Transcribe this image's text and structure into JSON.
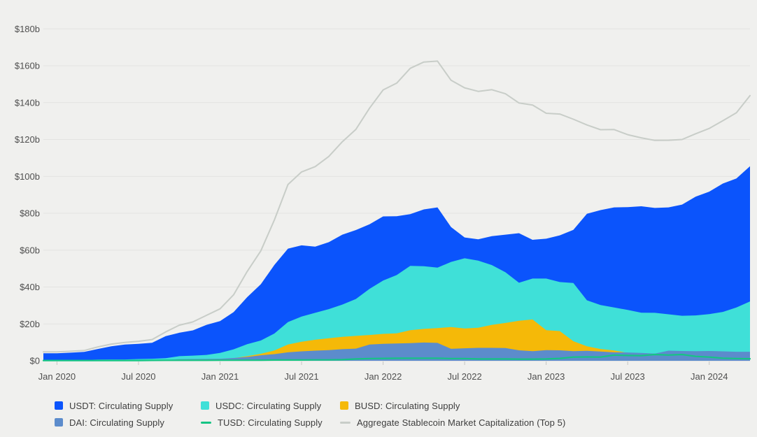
{
  "colors": {
    "background": "#f0f0ee",
    "gridline": "#e3e3e1",
    "zero_line": "#d8d8d6",
    "tick_mark": "#c6c6c4",
    "axis_text": "#4f4f4f",
    "legend_text": "#3d3d3d"
  },
  "chart_data": {
    "type": "area",
    "mode": "overlapping-areas-from-zero-plus-lines",
    "grid": "horizontal-only",
    "legend_position": "bottom-left",
    "ylim": [
      0,
      190
    ],
    "y_ticks": [
      {
        "value": 0,
        "label": "$0"
      },
      {
        "value": 20,
        "label": "$20b"
      },
      {
        "value": 40,
        "label": "$40b"
      },
      {
        "value": 60,
        "label": "$60b"
      },
      {
        "value": 80,
        "label": "$80b"
      },
      {
        "value": 100,
        "label": "$100b"
      },
      {
        "value": 120,
        "label": "$120b"
      },
      {
        "value": 140,
        "label": "$140b"
      },
      {
        "value": 160,
        "label": "$160b"
      },
      {
        "value": 180,
        "label": "$180b"
      }
    ],
    "x_ticks": [
      {
        "month": "2020-01",
        "label": "Jan 2020"
      },
      {
        "month": "2020-07",
        "label": "Jul 2020"
      },
      {
        "month": "2021-01",
        "label": "Jan 2021"
      },
      {
        "month": "2021-07",
        "label": "Jul 2021"
      },
      {
        "month": "2022-01",
        "label": "Jan 2022"
      },
      {
        "month": "2022-07",
        "label": "Jul 2022"
      },
      {
        "month": "2023-01",
        "label": "Jan 2023"
      },
      {
        "month": "2023-07",
        "label": "Jul 2023"
      },
      {
        "month": "2024-01",
        "label": "Jan 2024"
      }
    ],
    "dates": [
      "2019-12",
      "2020-01",
      "2020-02",
      "2020-03",
      "2020-04",
      "2020-05",
      "2020-06",
      "2020-07",
      "2020-08",
      "2020-09",
      "2020-10",
      "2020-11",
      "2020-12",
      "2021-01",
      "2021-02",
      "2021-03",
      "2021-04",
      "2021-05",
      "2021-06",
      "2021-07",
      "2021-08",
      "2021-09",
      "2021-10",
      "2021-11",
      "2021-12",
      "2022-01",
      "2022-02",
      "2022-03",
      "2022-04",
      "2022-05",
      "2022-06",
      "2022-07",
      "2022-08",
      "2022-09",
      "2022-10",
      "2022-11",
      "2022-12",
      "2023-01",
      "2023-02",
      "2023-03",
      "2023-04",
      "2023-05",
      "2023-06",
      "2023-07",
      "2023-08",
      "2023-09",
      "2023-10",
      "2023-11",
      "2023-12",
      "2024-01",
      "2024-02",
      "2024-03",
      "2024-04"
    ],
    "unit": "USD billions",
    "series": [
      {
        "id": "usdt",
        "name": "USDT: Circulating Supply",
        "kind": "area",
        "color": "#0b54fc",
        "values": [
          4.1,
          4.1,
          4.4,
          4.8,
          6.4,
          7.9,
          8.8,
          9.2,
          9.8,
          13.4,
          15.2,
          16.5,
          19.5,
          21.5,
          26.4,
          34.5,
          41.5,
          52.0,
          60.8,
          62.6,
          61.9,
          64.3,
          68.4,
          70.9,
          74.0,
          78.3,
          78.4,
          79.5,
          82.1,
          83.2,
          72.5,
          66.9,
          65.9,
          67.6,
          68.4,
          69.2,
          65.6,
          66.2,
          68.0,
          71.0,
          79.7,
          81.7,
          83.2,
          83.3,
          83.8,
          82.9,
          83.2,
          84.7,
          89.0,
          91.7,
          96.1,
          98.9,
          105.5
        ]
      },
      {
        "id": "usdc",
        "name": "USDC: Circulating Supply",
        "kind": "area",
        "color": "#3fe0d8",
        "values": [
          0.5,
          0.52,
          0.46,
          0.44,
          0.7,
          0.73,
          0.73,
          0.93,
          1.1,
          1.4,
          2.5,
          2.8,
          3.2,
          4.3,
          6.2,
          9.0,
          11.0,
          14.8,
          21.0,
          24.0,
          26.0,
          28.0,
          30.5,
          33.5,
          39.0,
          43.5,
          46.5,
          51.5,
          51.3,
          50.5,
          53.6,
          55.6,
          54.3,
          51.9,
          48.0,
          42.3,
          44.6,
          44.6,
          42.7,
          42.2,
          32.8,
          30.2,
          28.9,
          27.6,
          26.1,
          26.0,
          25.2,
          24.4,
          24.6,
          25.3,
          26.5,
          28.9,
          32.2
        ]
      },
      {
        "id": "busd",
        "name": "BUSD: Circulating Supply",
        "kind": "area",
        "color": "#f5b908",
        "values": [
          0.02,
          0.02,
          0.03,
          0.07,
          0.17,
          0.19,
          0.18,
          0.18,
          0.19,
          0.23,
          0.43,
          0.57,
          0.68,
          0.95,
          1.4,
          2.5,
          3.8,
          5.6,
          8.8,
          10.3,
          11.4,
          12.2,
          13.0,
          13.5,
          14.0,
          14.6,
          14.9,
          16.6,
          17.3,
          17.7,
          18.3,
          17.5,
          17.9,
          19.5,
          20.5,
          21.7,
          22.4,
          16.6,
          16.1,
          10.6,
          7.9,
          6.4,
          5.6,
          4.3,
          3.9,
          3.3,
          2.6,
          2.2,
          1.9,
          1.7,
          1.1,
          0.6,
          0.1
        ]
      },
      {
        "id": "dai",
        "name": "DAI: Circulating Supply",
        "kind": "area",
        "color": "#5c8ccc",
        "values": [
          0.05,
          0.09,
          0.11,
          0.12,
          0.09,
          0.09,
          0.11,
          0.13,
          0.19,
          0.35,
          0.89,
          0.93,
          1.0,
          1.1,
          1.5,
          2.1,
          3.0,
          3.6,
          4.6,
          5.1,
          5.5,
          5.8,
          6.3,
          6.6,
          8.8,
          9.2,
          9.4,
          9.6,
          9.9,
          9.7,
          6.5,
          6.8,
          7.0,
          7.0,
          6.9,
          5.7,
          5.2,
          5.8,
          5.7,
          5.2,
          5.4,
          5.0,
          4.6,
          4.5,
          4.3,
          3.9,
          5.5,
          5.3,
          5.2,
          5.3,
          5.1,
          4.9,
          4.9
        ]
      },
      {
        "id": "tusd",
        "name": "TUSD: Circulating Supply",
        "kind": "line",
        "color": "#15c484",
        "values": [
          0.14,
          0.14,
          0.14,
          0.14,
          0.14,
          0.14,
          0.14,
          0.14,
          0.23,
          0.28,
          0.28,
          0.28,
          0.28,
          0.31,
          0.31,
          0.31,
          0.31,
          0.4,
          0.4,
          0.4,
          0.5,
          0.5,
          0.6,
          1.0,
          1.2,
          1.3,
          1.35,
          1.4,
          1.4,
          1.4,
          1.2,
          1.2,
          1.0,
          1.0,
          1.0,
          0.9,
          0.9,
          1.0,
          1.3,
          2.0,
          2.1,
          2.0,
          3.1,
          2.9,
          2.8,
          3.4,
          3.1,
          3.4,
          2.4,
          2.0,
          1.4,
          1.2,
          1.1
        ]
      },
      {
        "id": "aggregate",
        "name": "Aggregate Stablecoin Market Capitalization (Top 5)",
        "kind": "line",
        "color": "#c8cdc8",
        "derived": "sum_of_all_other_series"
      }
    ]
  }
}
